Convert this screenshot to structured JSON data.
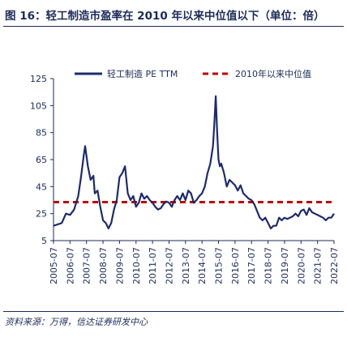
{
  "figure": {
    "title": "图 16：轻工制造市盈率在 2010 年以来中位值以下（单位：倍）",
    "source": "资料来源：万得，信达证券研发中心"
  },
  "colors": {
    "series_line": "#1c2b6e",
    "median_line": "#c00000",
    "text": "#1c2b5a",
    "axis": "#1c2b5a"
  },
  "chart_data": {
    "type": "line",
    "title": "",
    "xlabel": "",
    "ylabel": "",
    "ylim": [
      5,
      125
    ],
    "yticks": [
      5,
      25,
      45,
      65,
      85,
      105,
      125
    ],
    "xlim": [
      "2005-07",
      "2022-07"
    ],
    "xticks": [
      "2005-07",
      "2006-07",
      "2007-07",
      "2008-07",
      "2009-07",
      "2010-07",
      "2011-07",
      "2012-07",
      "2013-07",
      "2014-07",
      "2015-07",
      "2016-07",
      "2017-07",
      "2018-07",
      "2019-07",
      "2020-07",
      "2021-07",
      "2022-07"
    ],
    "grid": false,
    "legend_position": "top-right",
    "series": [
      {
        "name": "轻工制造 PE TTM",
        "style": "solid",
        "x": [
          "2005-07",
          "2005-10",
          "2006-01",
          "2006-04",
          "2006-07",
          "2006-10",
          "2007-01",
          "2007-03",
          "2007-05",
          "2007-06",
          "2007-08",
          "2007-10",
          "2007-12",
          "2008-01",
          "2008-03",
          "2008-05",
          "2008-07",
          "2008-09",
          "2008-11",
          "2009-01",
          "2009-03",
          "2009-05",
          "2009-07",
          "2009-09",
          "2009-11",
          "2010-01",
          "2010-03",
          "2010-05",
          "2010-07",
          "2010-09",
          "2010-11",
          "2011-01",
          "2011-03",
          "2011-05",
          "2011-07",
          "2011-09",
          "2011-11",
          "2012-01",
          "2012-03",
          "2012-05",
          "2012-07",
          "2012-09",
          "2012-11",
          "2013-01",
          "2013-03",
          "2013-05",
          "2013-07",
          "2013-09",
          "2013-11",
          "2014-01",
          "2014-03",
          "2014-05",
          "2014-07",
          "2014-09",
          "2014-11",
          "2015-01",
          "2015-03",
          "2015-04",
          "2015-05",
          "2015-06",
          "2015-07",
          "2015-08",
          "2015-09",
          "2015-11",
          "2016-01",
          "2016-03",
          "2016-05",
          "2016-07",
          "2016-09",
          "2016-11",
          "2017-01",
          "2017-03",
          "2017-05",
          "2017-07",
          "2017-09",
          "2017-11",
          "2018-01",
          "2018-03",
          "2018-05",
          "2018-07",
          "2018-09",
          "2018-11",
          "2019-01",
          "2019-03",
          "2019-05",
          "2019-07",
          "2019-09",
          "2019-11",
          "2020-01",
          "2020-03",
          "2020-05",
          "2020-07",
          "2020-09",
          "2020-11",
          "2021-01",
          "2021-03",
          "2021-05",
          "2021-07",
          "2021-09",
          "2021-11",
          "2022-01",
          "2022-03",
          "2022-05",
          "2022-07"
        ],
        "values": [
          16,
          17,
          18,
          25,
          24,
          28,
          38,
          52,
          68,
          75,
          60,
          50,
          53,
          40,
          42,
          30,
          20,
          18,
          14,
          18,
          28,
          35,
          52,
          55,
          60,
          40,
          35,
          38,
          30,
          33,
          40,
          36,
          38,
          35,
          33,
          30,
          28,
          29,
          32,
          34,
          33,
          30,
          35,
          38,
          35,
          40,
          35,
          42,
          40,
          33,
          35,
          38,
          40,
          45,
          55,
          62,
          75,
          92,
          112,
          86,
          65,
          60,
          62,
          55,
          45,
          50,
          48,
          46,
          42,
          46,
          40,
          38,
          36,
          35,
          32,
          27,
          22,
          20,
          22,
          18,
          14,
          16,
          16,
          22,
          20,
          22,
          21,
          22,
          23,
          25,
          23,
          27,
          28,
          24,
          29,
          26,
          25,
          24,
          23,
          22,
          20,
          22,
          22,
          25
        ]
      },
      {
        "name": "2010年以来中位值",
        "style": "dashed",
        "values": [
          33.5
        ]
      }
    ]
  }
}
